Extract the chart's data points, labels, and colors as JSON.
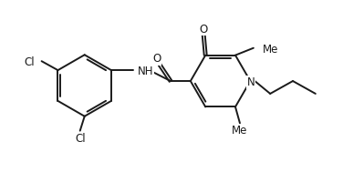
{
  "background_color": "#ffffff",
  "line_color": "#1a1a1a",
  "line_width": 1.4,
  "font_size": 8.5,
  "figsize": [
    3.76,
    1.89
  ],
  "dpi": 100,
  "labels": {
    "cl1": "Cl",
    "cl2": "Cl",
    "o_carbonyl": "O",
    "o_amide": "O",
    "nh": "NH",
    "n": "N",
    "me1": "Me",
    "me2": "Me"
  }
}
